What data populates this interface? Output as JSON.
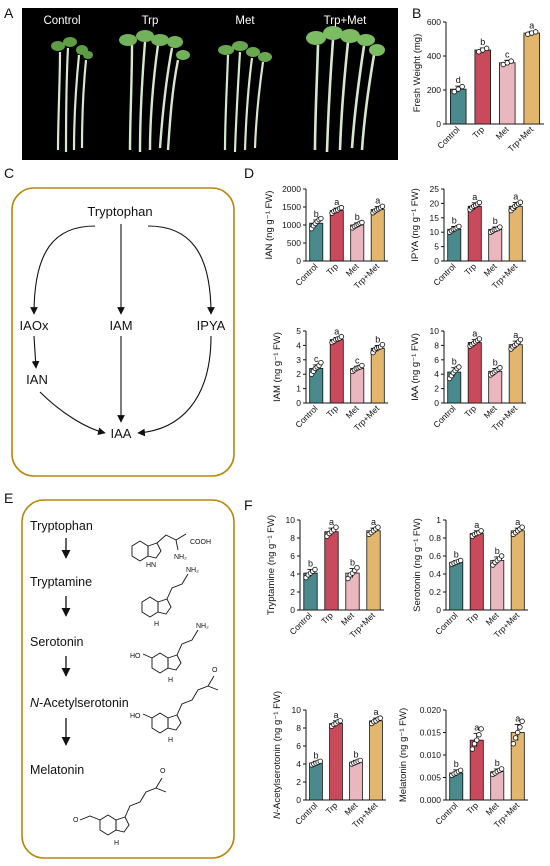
{
  "panels": {
    "a": "A",
    "b": "B",
    "c": "C",
    "d": "D",
    "e": "E",
    "f": "F"
  },
  "photo": {
    "labels": [
      "Control",
      "Trp",
      "Met",
      "Trp+Met"
    ]
  },
  "colors": {
    "Control": "#4a8a8c",
    "Trp": "#c94a5a",
    "Met": "#e9b7bd",
    "Trp+Met": "#e3b66d",
    "frame": "#b8860b"
  },
  "pathway_c": {
    "top": "Tryptophan",
    "iaox": "IAOx",
    "iam": "IAM",
    "ipya": "IPYA",
    "ian": "IAN",
    "iaa": "IAA"
  },
  "pathway_e": {
    "s1": "Tryptophan",
    "s2": "Tryptamine",
    "s3": "Serotonin",
    "s4_italic": "N",
    "s4_rest": "-Acetylserotonin",
    "s5": "Melatonin",
    "chem": {
      "cooh": "COOH",
      "nh2": "NH₂",
      "nh": "HN",
      "h": "H",
      "n": "N",
      "ho": "HO",
      "o": "O"
    }
  },
  "chart_data": [
    {
      "id": "B",
      "type": "bar",
      "categories": [
        "Control",
        "Trp",
        "Met",
        "Trp+Met"
      ],
      "ylabel": "Fresh Weight (mg)",
      "ylim": [
        0,
        600
      ],
      "yticks": [
        0,
        200,
        400,
        600
      ],
      "values": [
        205,
        435,
        360,
        535
      ],
      "errors": [
        18,
        12,
        15,
        10
      ],
      "letters": [
        "d",
        "b",
        "c",
        "a"
      ],
      "points": [
        [
          190,
          205,
          220
        ],
        [
          425,
          435,
          445
        ],
        [
          350,
          360,
          370
        ],
        [
          528,
          535,
          542
        ]
      ]
    },
    {
      "id": "IAN",
      "type": "bar",
      "categories": [
        "Control",
        "Trp",
        "Met",
        "Trp+Met"
      ],
      "ylabel": "IAN (ng g⁻¹ FW)",
      "ylim": [
        0,
        2000
      ],
      "yticks": [
        0,
        500,
        1000,
        1500,
        2000
      ],
      "values": [
        1050,
        1400,
        1000,
        1430
      ],
      "errors": [
        90,
        70,
        60,
        80
      ],
      "letters": [
        "b",
        "a",
        "b",
        "a"
      ],
      "points": [
        [
          900,
          980,
          1040,
          1100,
          1150,
          1180
        ],
        [
          1330,
          1380,
          1400,
          1420,
          1460,
          1480
        ],
        [
          920,
          960,
          990,
          1020,
          1050,
          1070
        ],
        [
          1340,
          1390,
          1420,
          1450,
          1480,
          1520
        ]
      ]
    },
    {
      "id": "IPYA",
      "type": "bar",
      "categories": [
        "Control",
        "Trp",
        "Met",
        "Trp+Met"
      ],
      "ylabel": "IPYA (ng g⁻¹ FW)",
      "ylim": [
        0,
        25
      ],
      "yticks": [
        0,
        5,
        10,
        15,
        20,
        25
      ],
      "values": [
        11,
        19,
        11,
        19
      ],
      "errors": [
        1,
        1.2,
        0.8,
        1.3
      ],
      "letters": [
        "b",
        "a",
        "b",
        "a"
      ],
      "points": [
        [
          10,
          10.5,
          11,
          11.2,
          11.6,
          12
        ],
        [
          17.8,
          18.5,
          19,
          19.3,
          19.8,
          20.3
        ],
        [
          10,
          10.4,
          10.8,
          11,
          11.3,
          11.8
        ],
        [
          17.5,
          18.3,
          19,
          19.4,
          19.9,
          20.4
        ]
      ]
    },
    {
      "id": "IAM",
      "type": "bar",
      "categories": [
        "Control",
        "Trp",
        "Met",
        "Trp+Met"
      ],
      "ylabel": "IAM (ng g⁻¹ FW)",
      "ylim": [
        0,
        5
      ],
      "yticks": [
        0,
        1,
        2,
        3,
        4,
        5
      ],
      "values": [
        2.4,
        4.4,
        2.4,
        3.8
      ],
      "errors": [
        0.25,
        0.15,
        0.15,
        0.2
      ],
      "letters": [
        "c",
        "a",
        "c",
        "b"
      ],
      "points": [
        [
          2.0,
          2.2,
          2.4,
          2.5,
          2.6,
          2.8
        ],
        [
          4.2,
          4.3,
          4.4,
          4.45,
          4.5,
          4.6
        ],
        [
          2.2,
          2.3,
          2.4,
          2.45,
          2.5,
          2.6
        ],
        [
          3.5,
          3.7,
          3.8,
          3.85,
          3.9,
          4.05
        ]
      ]
    },
    {
      "id": "IAA",
      "type": "bar",
      "categories": [
        "Control",
        "Trp",
        "Met",
        "Trp+Met"
      ],
      "ylabel": "IAA (ng g⁻¹ FW)",
      "ylim": [
        0,
        10
      ],
      "yticks": [
        0,
        2,
        4,
        6,
        8,
        10
      ],
      "values": [
        4.3,
        8.4,
        4.4,
        8.1
      ],
      "errors": [
        0.6,
        0.4,
        0.4,
        0.5
      ],
      "letters": [
        "b",
        "a",
        "b",
        "a"
      ],
      "points": [
        [
          3.4,
          3.8,
          4.2,
          4.5,
          4.8,
          5.0
        ],
        [
          7.9,
          8.1,
          8.3,
          8.5,
          8.7,
          8.9
        ],
        [
          3.9,
          4.1,
          4.3,
          4.5,
          4.7,
          4.9
        ],
        [
          7.5,
          7.8,
          8.0,
          8.2,
          8.5,
          8.8
        ]
      ]
    },
    {
      "id": "Tryptamine",
      "type": "bar",
      "categories": [
        "Control",
        "Trp",
        "Met",
        "Trp+Met"
      ],
      "ylabel": "Tryptamine (ng g⁻¹ FW)",
      "ylim": [
        0,
        10
      ],
      "yticks": [
        0,
        2,
        4,
        6,
        8,
        10
      ],
      "values": [
        4.1,
        8.7,
        4.1,
        8.8
      ],
      "errors": [
        0.4,
        0.4,
        0.5,
        0.3
      ],
      "letters": [
        "b",
        "a",
        "b",
        "a"
      ],
      "points": [
        [
          3.6,
          3.9,
          4.1,
          4.3,
          4.5
        ],
        [
          8.2,
          8.5,
          8.7,
          8.9,
          9.2
        ],
        [
          3.5,
          3.9,
          4.1,
          4.4,
          4.7
        ],
        [
          8.4,
          8.6,
          8.8,
          9.0,
          9.2
        ]
      ]
    },
    {
      "id": "Serotonin",
      "type": "bar",
      "categories": [
        "Control",
        "Trp",
        "Met",
        "Trp+Met"
      ],
      "ylabel": "Serotonin (ng g⁻¹ FW)",
      "ylim": [
        0,
        1.0
      ],
      "yticks": [
        0,
        0.2,
        0.4,
        0.6,
        0.8,
        1.0
      ],
      "values": [
        0.53,
        0.85,
        0.55,
        0.88
      ],
      "errors": [
        0.02,
        0.03,
        0.04,
        0.03
      ],
      "letters": [
        "b",
        "a",
        "b",
        "a"
      ],
      "points": [
        [
          0.51,
          0.52,
          0.53,
          0.54,
          0.55
        ],
        [
          0.82,
          0.84,
          0.85,
          0.86,
          0.88
        ],
        [
          0.5,
          0.53,
          0.55,
          0.57,
          0.6
        ],
        [
          0.84,
          0.86,
          0.88,
          0.9,
          0.92
        ]
      ]
    },
    {
      "id": "N-Acetylserotonin",
      "type": "bar",
      "categories": [
        "Control",
        "Trp",
        "Met",
        "Trp+Met"
      ],
      "ylabel_italic": "N",
      "ylabel": "-Acetylserotonin (ng g⁻¹ FW)",
      "ylim": [
        0,
        10
      ],
      "yticks": [
        0,
        2,
        4,
        6,
        8,
        10
      ],
      "values": [
        4.1,
        8.5,
        4.2,
        8.8
      ],
      "errors": [
        0.2,
        0.3,
        0.2,
        0.3
      ],
      "letters": [
        "b",
        "a",
        "b",
        "a"
      ],
      "points": [
        [
          3.9,
          4.0,
          4.1,
          4.2,
          4.3
        ],
        [
          8.2,
          8.4,
          8.5,
          8.7,
          8.8
        ],
        [
          4.0,
          4.1,
          4.2,
          4.3,
          4.4
        ],
        [
          8.5,
          8.7,
          8.8,
          9.0,
          9.1
        ]
      ]
    },
    {
      "id": "Melatonin",
      "type": "bar",
      "categories": [
        "Control",
        "Trp",
        "Met",
        "Trp+Met"
      ],
      "ylabel": "Melatonin (ng g⁻¹ FW)",
      "ylim": [
        0,
        0.02
      ],
      "yticks": [
        0,
        0.005,
        0.01,
        0.015,
        0.02
      ],
      "ytick_labels": [
        "0.000",
        "0.005",
        "0.010",
        "0.015",
        "0.020"
      ],
      "values": [
        0.006,
        0.0133,
        0.0063,
        0.015
      ],
      "errors": [
        0.0007,
        0.0015,
        0.0006,
        0.0018
      ],
      "letters": [
        "b",
        "a",
        "b",
        "a"
      ],
      "points": [
        [
          0.0055,
          0.0058,
          0.006,
          0.0063,
          0.0066
        ],
        [
          0.0113,
          0.0125,
          0.0133,
          0.0145,
          0.0158
        ],
        [
          0.0057,
          0.006,
          0.0063,
          0.0066,
          0.0069
        ],
        [
          0.0125,
          0.0138,
          0.015,
          0.0162,
          0.0175
        ]
      ]
    }
  ]
}
